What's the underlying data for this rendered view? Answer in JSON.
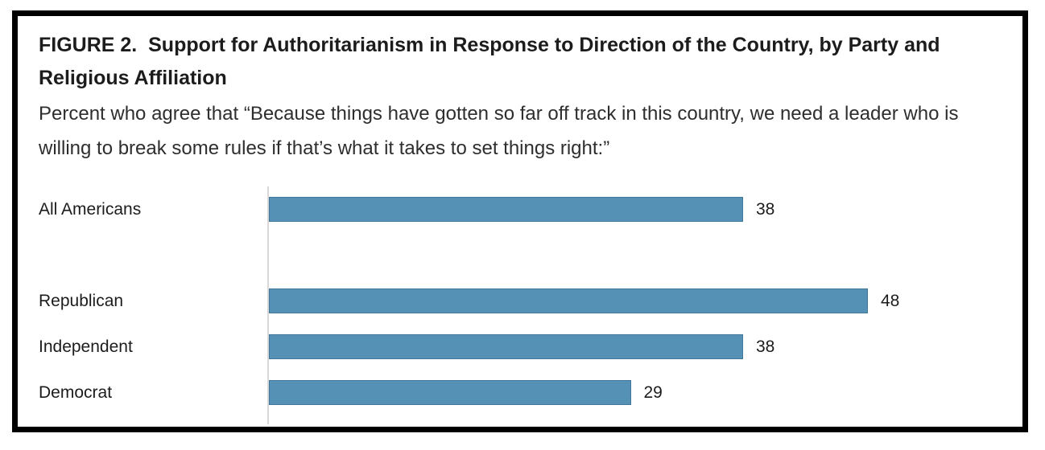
{
  "figure": {
    "title": "FIGURE 2.  Support for Authoritarianism in Response to Direction of the Country, by Party and Religious Affiliation",
    "subtitle": "Percent who agree that “Because things have gotten so far off track in this country, we need a leader who is willing to break some rules if that’s what it takes to set things right:”"
  },
  "chart_data": {
    "type": "bar",
    "orientation": "horizontal",
    "title": "",
    "xlabel": "",
    "ylabel": "",
    "categories": [
      "All Americans",
      "Republican",
      "Independent",
      "Democrat"
    ],
    "values": [
      38,
      48,
      38,
      29
    ],
    "value_labels": [
      "38",
      "48",
      "38",
      "29"
    ],
    "group_gap_after": "All Americans",
    "data_labels": true,
    "legend": false,
    "grid": false,
    "xlim": [
      0,
      62
    ],
    "bar_color": "#5591b4",
    "bar_border_color": "#42779a",
    "axis_line_color": "#d9d9d9",
    "text_color": "#1c1c1c"
  }
}
